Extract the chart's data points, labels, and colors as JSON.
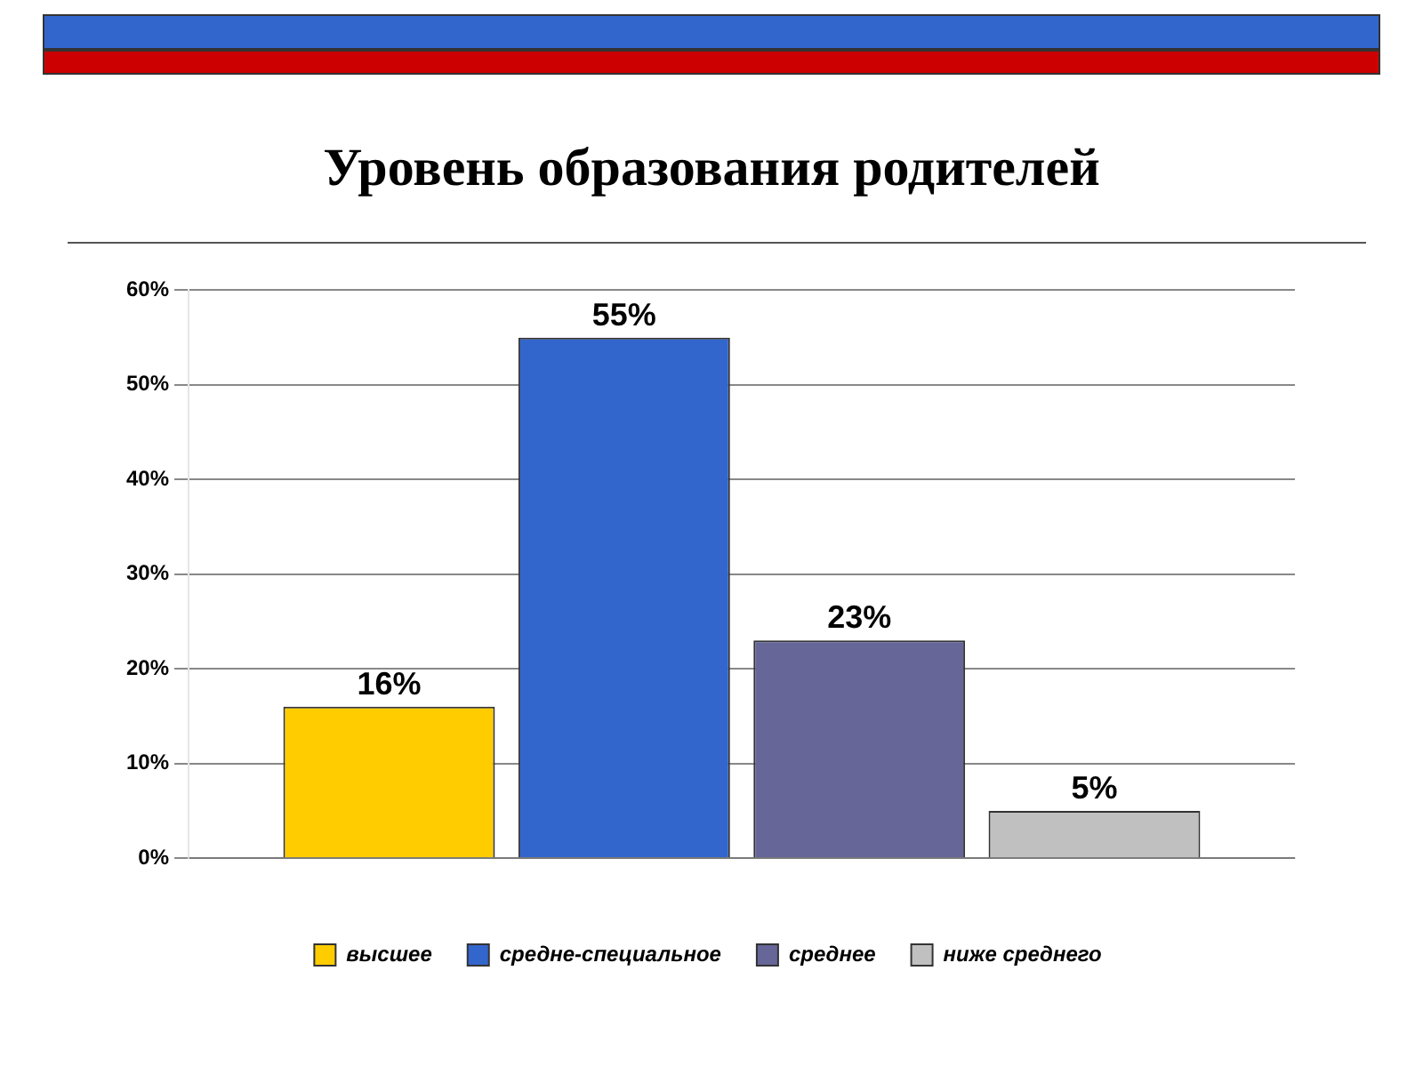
{
  "chart_data": {
    "type": "bar",
    "title": "Уровень образования родителей",
    "categories": [
      null
    ],
    "series": [
      {
        "name": "высшее",
        "color": "#ffcc00",
        "values": [
          16
        ],
        "value_labels": [
          "16%"
        ]
      },
      {
        "name": "средне-специальное",
        "color": "#3366cc",
        "values": [
          55
        ],
        "value_labels": [
          "55%"
        ]
      },
      {
        "name": "среднее",
        "color": "#666699",
        "values": [
          23
        ],
        "value_labels": [
          "23%"
        ]
      },
      {
        "name": "ниже среднего",
        "color": "#c0c0c0",
        "values": [
          5
        ],
        "value_labels": [
          "5%"
        ]
      }
    ],
    "ylim": [
      0,
      60
    ],
    "yticks": [
      {
        "value": 0,
        "label": "0%"
      },
      {
        "value": 10,
        "label": "10%"
      },
      {
        "value": 20,
        "label": "20%"
      },
      {
        "value": 30,
        "label": "30%"
      },
      {
        "value": 40,
        "label": "40%"
      },
      {
        "value": 50,
        "label": "50%"
      },
      {
        "value": 60,
        "label": "60%"
      }
    ],
    "grid": "y",
    "legend": "bottom"
  }
}
